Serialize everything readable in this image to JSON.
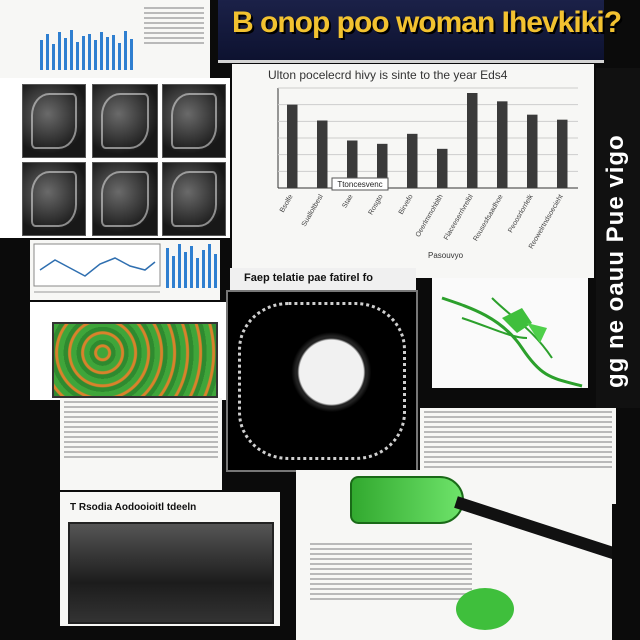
{
  "title": "B onop poo woman Ihevkiki?",
  "side_banner": "gg ne oauu Pue vigo",
  "chart": {
    "title": "Ulton pocelecrd hivy is sinte to the year Eds4",
    "caption_box": "Ttoncesvenc",
    "x_labels": [
      "Bsolfe",
      "Sualloltbesl",
      "Stae",
      "Rosgto",
      "Birvefo",
      "Oeerlmmohblth",
      "Flaceeserrlvrelbl",
      "Rousesfsaadhoe",
      "Peoosrlorrlelk",
      "Reowelrtndsoecieht"
    ],
    "x_axis_title": "Pasouvyo",
    "type": "bar",
    "values": [
      100,
      81,
      57,
      53,
      65,
      47,
      114,
      104,
      88,
      82
    ],
    "ylim": [
      0,
      120
    ],
    "color": "#3a3a3a"
  },
  "panel_caption": "Faep telatie pae fatirel fo",
  "bottom_left_caption": "T Rsodia Aodooioitl tdeeln",
  "accent_colors": {
    "banner": "#f2c230",
    "green": "#3fbf3c",
    "blue": "#2f7fd0"
  },
  "icons": [
    "microscope-tile",
    "plant-illustration",
    "leaf-icon"
  ]
}
